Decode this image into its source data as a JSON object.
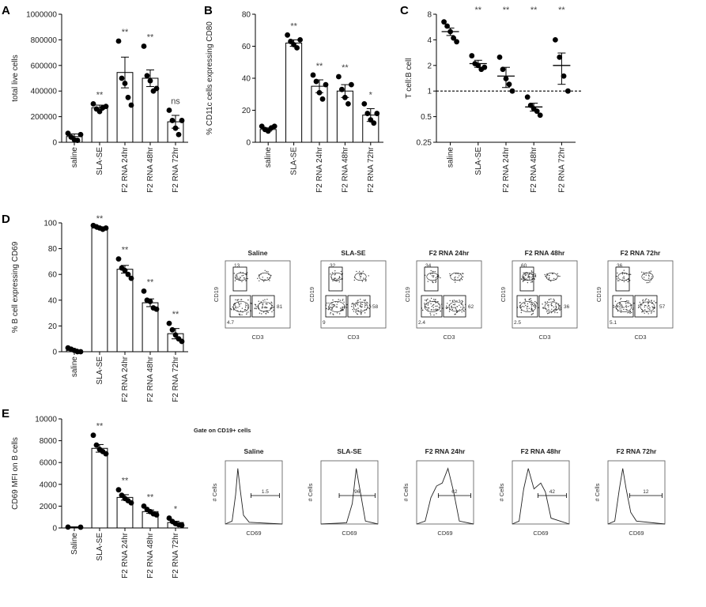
{
  "figure": {
    "panel_letters": {
      "A": "A",
      "B": "B",
      "C": "C",
      "D": "D",
      "E": "E"
    },
    "facs_d": {
      "titles": [
        "Saline",
        "SLA-SE",
        "F2 RNA 24hr",
        "F2 RNA 48hr",
        "F2 RNA 72hr"
      ],
      "x_label": "CD3",
      "y_label": "CD19",
      "gate_values": [
        [
          "13",
          "81",
          "4.7"
        ],
        [
          "32",
          "58",
          "9"
        ],
        [
          "34",
          "62",
          "2.4"
        ],
        [
          "60",
          "36",
          "2.5"
        ],
        [
          "36",
          "57",
          "5.1"
        ]
      ]
    },
    "facs_e": {
      "gate_note": "Gate on CD19+ cells",
      "titles": [
        "Saline",
        "SLA-SE",
        "F2 RNA 24hr",
        "F2 RNA 48hr",
        "F2 RNA 72hr"
      ],
      "x_label": "CD69",
      "y_label": "# Cells",
      "marker_values": [
        "1.5",
        "96",
        "62",
        "42",
        "12"
      ]
    }
  },
  "chart_data": [
    {
      "id": "A",
      "type": "bar",
      "categories": [
        "saline",
        "SLA-SE",
        "F2 RNA 24hr",
        "F2 RNA 48hr",
        "F2 RNA 72hr"
      ],
      "values": [
        45000,
        270000,
        545000,
        500000,
        160000
      ],
      "errors": [
        20000,
        20000,
        120000,
        65000,
        50000
      ],
      "points": [
        [
          70000,
          40000,
          20000,
          15000,
          60000
        ],
        [
          300000,
          260000,
          240000,
          270000,
          280000
        ],
        [
          790000,
          500000,
          460000,
          350000,
          290000
        ],
        [
          750000,
          520000,
          480000,
          400000,
          420000
        ],
        [
          250000,
          170000,
          110000,
          60000,
          170000
        ]
      ],
      "significance": [
        "",
        "**",
        "**",
        "**",
        "ns"
      ],
      "ylabel": "total live cells",
      "yticks": [
        "0",
        "200000",
        "400000",
        "600000",
        "800000",
        "1000000"
      ],
      "ylim": [
        0,
        1000000
      ],
      "grid": false
    },
    {
      "id": "B",
      "type": "bar",
      "categories": [
        "saline",
        "SLA-SE",
        "F2 RNA 24hr",
        "F2 RNA 48hr",
        "F2 RNA 72hr"
      ],
      "values": [
        8,
        62,
        35,
        32,
        17
      ],
      "errors": [
        1,
        2,
        4,
        4,
        4
      ],
      "points": [
        [
          10,
          8,
          7,
          9,
          10
        ],
        [
          67,
          63,
          61,
          59,
          64
        ],
        [
          42,
          38,
          31,
          27,
          36
        ],
        [
          41,
          33,
          28,
          24,
          36
        ],
        [
          24,
          18,
          14,
          12,
          18
        ]
      ],
      "significance": [
        "",
        "**",
        "**",
        "**",
        "*"
      ],
      "ylabel": "% CD11c cells expressing CD80",
      "yticks": [
        "0",
        "20",
        "40",
        "60",
        "80"
      ],
      "ylim": [
        0,
        80
      ],
      "grid": false
    },
    {
      "id": "C",
      "type": "scatter",
      "y_scale": "log2",
      "categories": [
        "saline",
        "SLA-SE",
        "F2 RNA 24hr",
        "F2 RNA 48hr",
        "F2 RNA 72hr"
      ],
      "means": [
        5.0,
        2.1,
        1.5,
        0.65,
        2.0
      ],
      "errors": [
        0.5,
        0.2,
        0.4,
        0.07,
        0.8
      ],
      "points": [
        [
          6.5,
          5.8,
          5.0,
          4.2,
          3.8
        ],
        [
          2.6,
          2.1,
          2.0,
          1.8,
          1.9
        ],
        [
          2.5,
          1.8,
          1.4,
          1.2,
          1.0
        ],
        [
          0.85,
          0.68,
          0.62,
          0.58,
          0.52
        ],
        [
          4.0,
          2.5,
          1.5,
          1.0
        ]
      ],
      "significance": [
        "",
        "**",
        "**",
        "**",
        "**"
      ],
      "reference_line": 1,
      "ylabel": "T cell:B cell",
      "yticks": [
        "0.25",
        "0.5",
        "1",
        "2",
        "4",
        "8"
      ],
      "ylim": [
        0.25,
        8
      ],
      "grid": false
    },
    {
      "id": "D",
      "type": "bar",
      "categories": [
        "saline",
        "SLA-SE",
        "F2 RNA 24hr",
        "F2 RNA 48hr",
        "F2 RNA 72hr"
      ],
      "values": [
        1,
        96,
        64,
        38,
        14
      ],
      "errors": [
        1,
        1,
        3,
        3,
        4
      ],
      "points": [
        [
          3,
          2,
          1,
          0,
          0
        ],
        [
          98,
          97,
          96,
          95,
          96
        ],
        [
          72,
          65,
          63,
          60,
          57
        ],
        [
          47,
          40,
          39,
          34,
          33
        ],
        [
          22,
          17,
          13,
          10,
          8
        ]
      ],
      "significance": [
        "",
        "**",
        "**",
        "**",
        "**"
      ],
      "ylabel": "% B cell expressing CD69",
      "yticks": [
        "0",
        "20",
        "40",
        "60",
        "80",
        "100"
      ],
      "ylim": [
        0,
        100
      ],
      "grid": false
    },
    {
      "id": "E",
      "type": "bar",
      "categories": [
        "Saline",
        "SLA-SE",
        "F2 RNA 24hr",
        "F2 RNA 48hr",
        "F2 RNA 72hr"
      ],
      "values": [
        80,
        7300,
        2800,
        1500,
        500
      ],
      "errors": [
        20,
        350,
        250,
        150,
        120
      ],
      "points": [
        [
          80,
          70
        ],
        [
          8500,
          7600,
          7200,
          7000,
          6800
        ],
        [
          3500,
          3000,
          2700,
          2500,
          2300
        ],
        [
          2000,
          1700,
          1500,
          1300,
          1200
        ],
        [
          900,
          600,
          400,
          300,
          250
        ]
      ],
      "significance": [
        "",
        "**",
        "**",
        "**",
        "*"
      ],
      "ylabel": "CD69 MFI on B cells",
      "yticks": [
        "0",
        "2000",
        "4000",
        "6000",
        "8000",
        "10000"
      ],
      "ylim": [
        0,
        10000
      ],
      "grid": false
    }
  ]
}
